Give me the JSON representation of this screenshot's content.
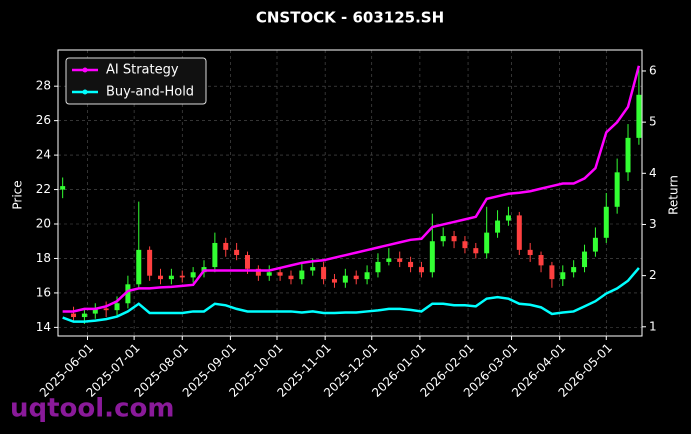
{
  "chart_data": {
    "type": "candlestick",
    "title": "CNSTOCK - 603125.SH",
    "ylabel": "Price",
    "y2label": "Return",
    "x": [
      "2025-05-16",
      "2025-05-23",
      "2025-05-30",
      "2025-06-06",
      "2025-06-13",
      "2025-06-20",
      "2025-06-27",
      "2025-07-04",
      "2025-07-11",
      "2025-07-18",
      "2025-07-25",
      "2025-08-01",
      "2025-08-08",
      "2025-08-15",
      "2025-08-22",
      "2025-08-29",
      "2025-09-05",
      "2025-09-12",
      "2025-09-19",
      "2025-09-26",
      "2025-10-03",
      "2025-10-10",
      "2025-10-17",
      "2025-10-24",
      "2025-10-31",
      "2025-11-07",
      "2025-11-14",
      "2025-11-21",
      "2025-11-28",
      "2025-12-05",
      "2025-12-12",
      "2025-12-19",
      "2025-12-26",
      "2026-01-02",
      "2026-01-09",
      "2026-01-16",
      "2026-01-23",
      "2026-01-30",
      "2026-02-06",
      "2026-02-13",
      "2026-02-20",
      "2026-02-27",
      "2026-03-06",
      "2026-03-13",
      "2026-03-20",
      "2026-03-27",
      "2026-04-03",
      "2026-04-10",
      "2026-04-17",
      "2026-04-24",
      "2026-05-01",
      "2026-05-08",
      "2026-05-15",
      "2026-05-22"
    ],
    "open": [
      22.0,
      14.8,
      14.6,
      14.8,
      15.1,
      15.0,
      15.4,
      16.5,
      18.5,
      17.0,
      16.8,
      17.0,
      16.9,
      17.2,
      17.5,
      18.9,
      18.5,
      18.2,
      17.4,
      17.0,
      17.2,
      17.0,
      16.8,
      17.3,
      17.5,
      16.8,
      16.6,
      17.0,
      16.8,
      17.2,
      17.8,
      18.0,
      17.8,
      17.5,
      17.2,
      19.0,
      19.3,
      19.0,
      18.6,
      18.3,
      19.5,
      20.2,
      20.5,
      18.5,
      18.2,
      17.6,
      16.8,
      17.2,
      17.5,
      18.4,
      19.2,
      21.0,
      23.0,
      25.0
    ],
    "high": [
      22.7,
      15.2,
      15.1,
      15.4,
      15.5,
      15.8,
      17.0,
      21.3,
      18.7,
      17.4,
      17.4,
      17.3,
      17.5,
      17.9,
      19.5,
      19.2,
      18.9,
      18.4,
      17.6,
      17.6,
      17.5,
      17.3,
      17.8,
      18.0,
      17.8,
      17.1,
      17.4,
      17.3,
      17.6,
      18.3,
      18.6,
      18.4,
      18.1,
      17.8,
      20.6,
      19.8,
      19.6,
      19.3,
      18.9,
      21.0,
      20.8,
      21.0,
      20.7,
      18.9,
      18.4,
      17.8,
      17.6,
      17.9,
      18.8,
      19.8,
      21.8,
      23.8,
      25.8,
      29.0
    ],
    "low": [
      21.5,
      14.3,
      14.2,
      14.5,
      14.6,
      14.7,
      15.1,
      16.2,
      16.7,
      16.5,
      16.5,
      16.6,
      16.6,
      16.9,
      17.2,
      18.1,
      17.9,
      17.1,
      16.7,
      16.7,
      16.7,
      16.5,
      16.5,
      17.0,
      16.5,
      16.3,
      16.3,
      16.5,
      16.5,
      16.9,
      17.6,
      17.5,
      17.2,
      16.9,
      16.9,
      18.7,
      18.6,
      18.3,
      18.0,
      18.0,
      19.2,
      19.9,
      18.2,
      17.8,
      17.2,
      16.3,
      16.4,
      16.9,
      17.2,
      18.1,
      18.9,
      20.6,
      22.5,
      24.6
    ],
    "close": [
      22.2,
      14.6,
      14.8,
      15.1,
      15.0,
      15.4,
      16.5,
      18.5,
      17.0,
      16.8,
      17.0,
      16.9,
      17.2,
      17.5,
      18.9,
      18.5,
      18.2,
      17.4,
      17.0,
      17.2,
      17.0,
      16.8,
      17.3,
      17.5,
      16.8,
      16.6,
      17.0,
      16.8,
      17.2,
      17.8,
      18.0,
      17.8,
      17.5,
      17.2,
      19.0,
      19.3,
      19.0,
      18.6,
      18.3,
      19.5,
      20.2,
      20.5,
      18.5,
      18.2,
      17.6,
      16.8,
      17.2,
      17.5,
      18.4,
      19.2,
      21.0,
      23.0,
      25.0,
      27.5
    ],
    "up_color": "#33ff33",
    "down_color": "#ff4040",
    "series": [
      {
        "name": "AI Strategy",
        "color": "#ff00ff",
        "axis": "y2",
        "values": [
          1.3,
          1.3,
          1.35,
          1.35,
          1.4,
          1.5,
          1.7,
          1.75,
          1.75,
          1.77,
          1.78,
          1.8,
          1.82,
          2.1,
          2.1,
          2.1,
          2.1,
          2.1,
          2.1,
          2.1,
          2.15,
          2.2,
          2.25,
          2.28,
          2.3,
          2.35,
          2.4,
          2.45,
          2.5,
          2.55,
          2.6,
          2.65,
          2.7,
          2.72,
          2.95,
          3.0,
          3.05,
          3.1,
          3.15,
          3.5,
          3.55,
          3.6,
          3.62,
          3.65,
          3.7,
          3.75,
          3.8,
          3.8,
          3.9,
          4.1,
          4.8,
          5.0,
          5.3,
          6.1
        ]
      },
      {
        "name": "Buy-and-Hold",
        "color": "#00ffff",
        "axis": "y2",
        "values": [
          1.18,
          1.1,
          1.1,
          1.12,
          1.15,
          1.2,
          1.3,
          1.45,
          1.27,
          1.27,
          1.27,
          1.27,
          1.3,
          1.3,
          1.45,
          1.42,
          1.35,
          1.3,
          1.3,
          1.3,
          1.3,
          1.3,
          1.28,
          1.3,
          1.27,
          1.27,
          1.28,
          1.28,
          1.3,
          1.32,
          1.35,
          1.35,
          1.33,
          1.3,
          1.45,
          1.45,
          1.42,
          1.42,
          1.4,
          1.55,
          1.58,
          1.55,
          1.45,
          1.43,
          1.38,
          1.25,
          1.28,
          1.3,
          1.4,
          1.5,
          1.65,
          1.75,
          1.9,
          2.15
        ]
      }
    ],
    "xlim": [
      "2025-05-13",
      "2026-05-24"
    ],
    "xticks": [
      "2025-06-01",
      "2025-07-01",
      "2025-08-01",
      "2025-09-01",
      "2025-10-01",
      "2025-11-01",
      "2025-12-01",
      "2026-01-01",
      "2026-02-01",
      "2026-03-01",
      "2026-04-01",
      "2026-05-01"
    ],
    "ylim": [
      13.5,
      30.1
    ],
    "yticks": [
      14,
      16,
      18,
      20,
      22,
      24,
      26,
      28
    ],
    "y2lim": [
      0.82,
      6.41
    ],
    "y2ticks": [
      1,
      2,
      3,
      4,
      5,
      6
    ],
    "grid": true,
    "legend": "upper left"
  },
  "watermark": "uqtool.com"
}
